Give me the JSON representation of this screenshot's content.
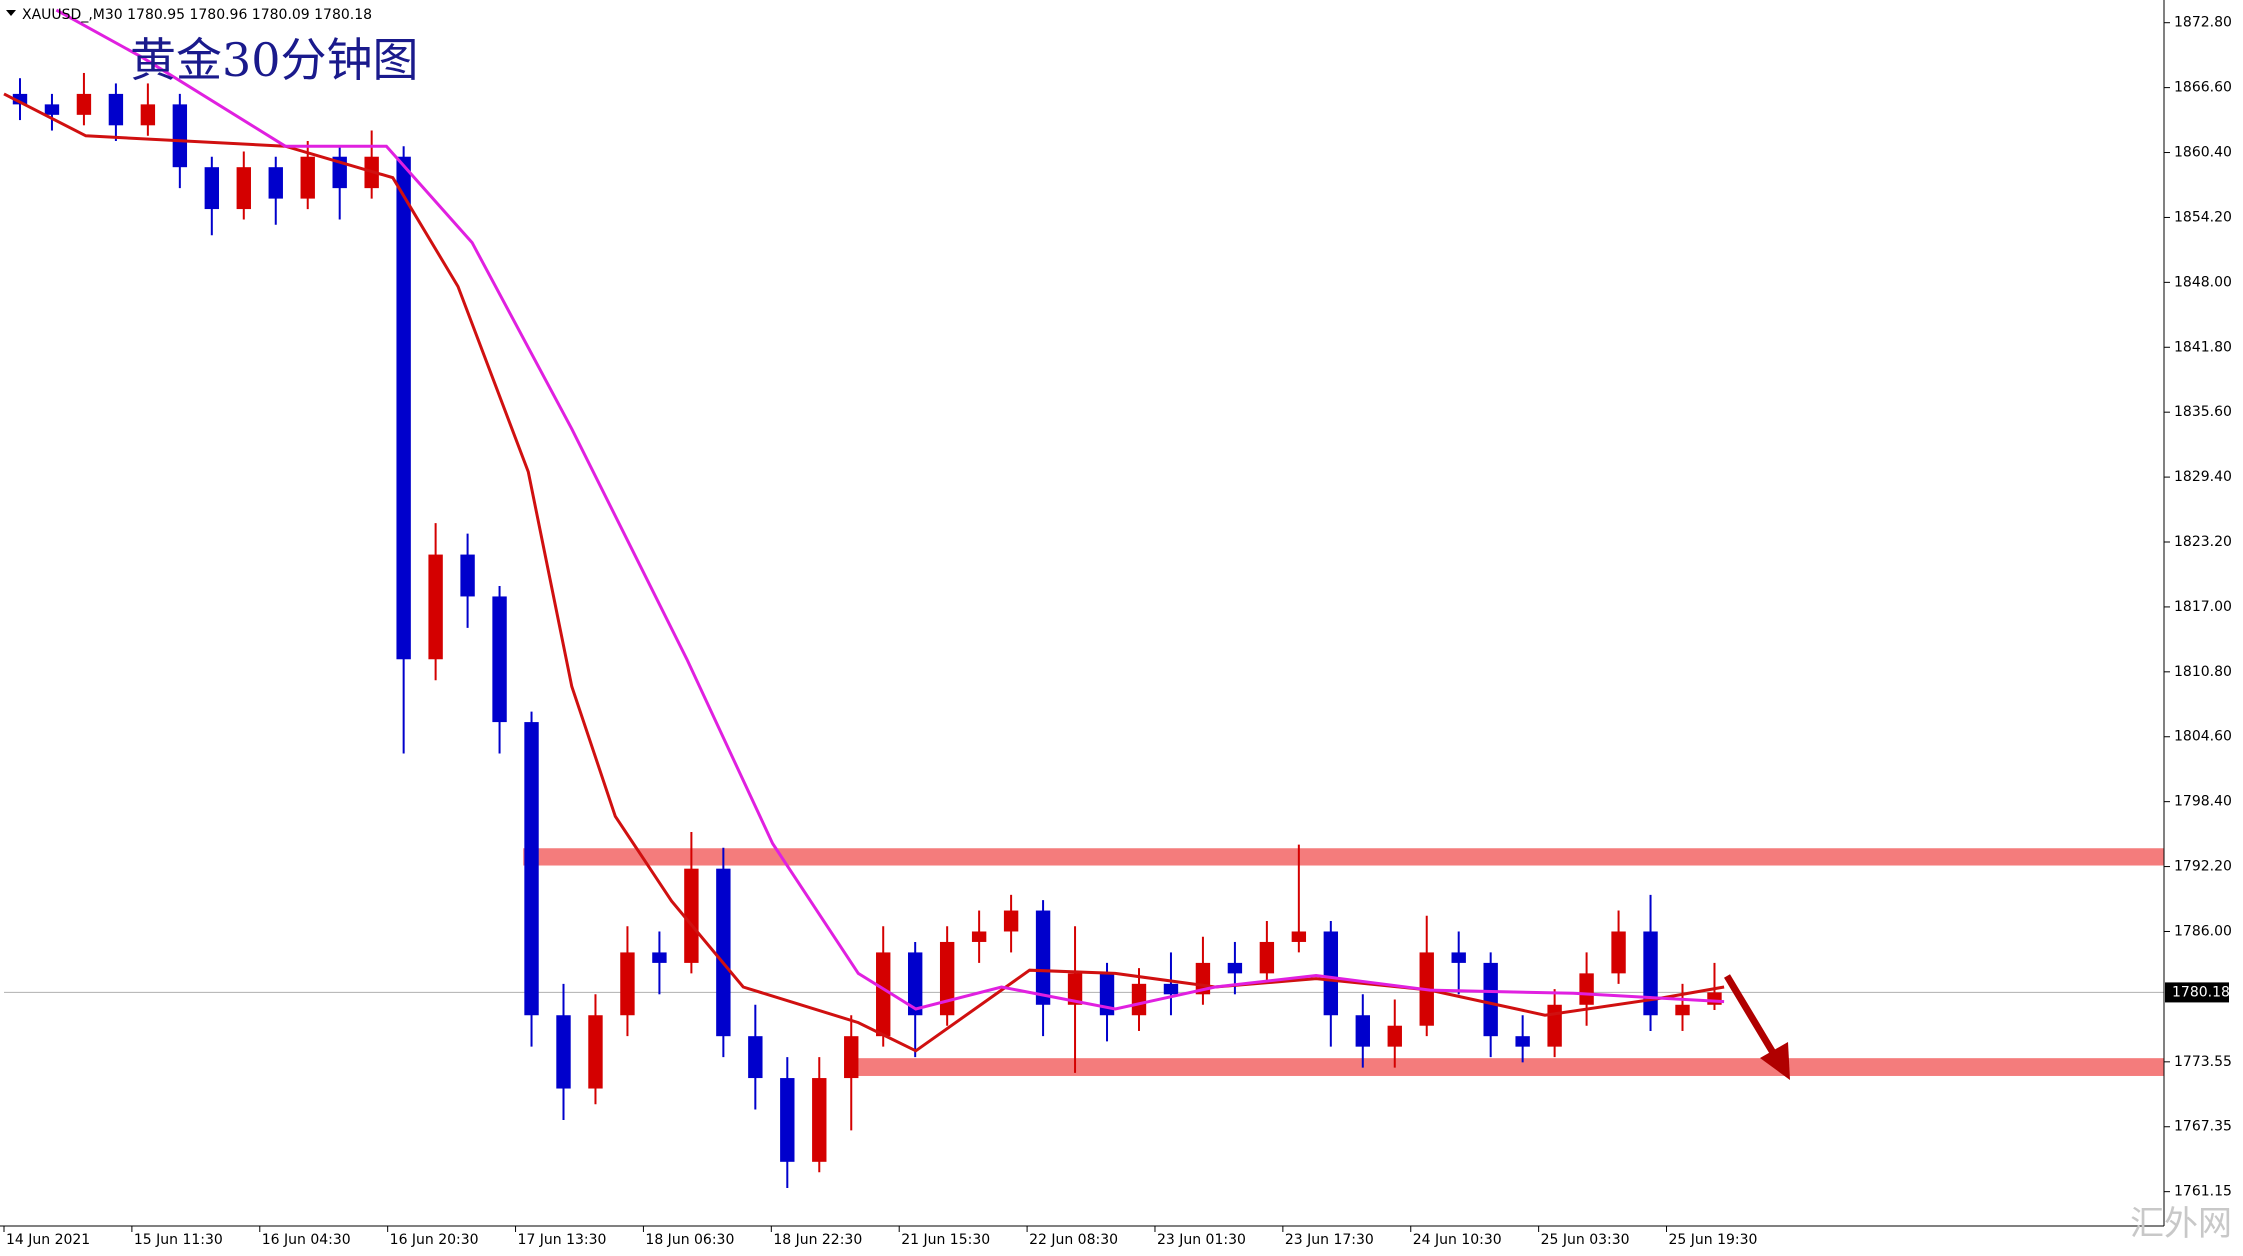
{
  "chart_data": {
    "type": "candlestick",
    "header": "XAUUSD_,M30  1780.95 1780.96 1780.09 1780.18",
    "title": "黄金30分钟图",
    "watermark": "汇外网",
    "up_color": "#d40000",
    "down_color": "#0000cc",
    "candles": {
      "x": [
        0.125,
        0.375,
        0.625,
        0.875,
        1.125,
        1.375,
        1.625,
        1.875,
        2.125,
        2.375,
        2.625,
        2.875,
        3.125,
        3.375,
        3.625,
        3.875,
        4.125,
        4.375,
        4.625,
        4.875,
        5.125,
        5.375,
        5.625,
        5.875,
        6.125,
        6.375,
        6.625,
        6.875,
        7.125,
        7.375,
        7.625,
        7.875,
        8.125,
        8.375,
        8.625,
        8.875,
        9.125,
        9.375,
        9.625,
        9.875,
        10.125,
        10.375,
        10.625,
        10.875,
        11.125,
        11.375,
        11.625,
        11.875,
        12.125,
        12.375,
        12.625,
        12.875,
        13.125,
        13.375
      ],
      "open": [
        1866,
        1865,
        1864,
        1866,
        1863,
        1865,
        1859,
        1855,
        1859,
        1856,
        1860,
        1857,
        1860,
        1812,
        1822,
        1818,
        1806,
        1778,
        1771,
        1778,
        1784,
        1783,
        1792,
        1776,
        1772,
        1764,
        1772,
        1776,
        1784,
        1778,
        1785,
        1786,
        1788,
        1779,
        1782,
        1778,
        1781,
        1780,
        1783,
        1782,
        1785,
        1786,
        1778,
        1775,
        1777,
        1784,
        1783,
        1776,
        1775,
        1779,
        1782,
        1786,
        1778,
        1779
      ],
      "high": [
        1867.5,
        1866,
        1868,
        1867,
        1867,
        1866,
        1860,
        1860.5,
        1860,
        1861.5,
        1861,
        1862.5,
        1861,
        1825,
        1824,
        1819,
        1807,
        1781,
        1780,
        1786.5,
        1786,
        1795.5,
        1794,
        1779,
        1774,
        1774,
        1778,
        1786.5,
        1785,
        1786.5,
        1788,
        1789.5,
        1789,
        1786.5,
        1783,
        1782.5,
        1784,
        1785.5,
        1785,
        1787,
        1794.3,
        1787,
        1780,
        1779.5,
        1787.5,
        1786,
        1784,
        1778,
        1780.5,
        1784,
        1788,
        1789.5,
        1781,
        1783
      ],
      "low": [
        1863.5,
        1862.5,
        1863,
        1861.5,
        1862,
        1857,
        1852.5,
        1854,
        1853.5,
        1855,
        1854,
        1856,
        1803,
        1810,
        1815,
        1803,
        1775,
        1768,
        1769.5,
        1776,
        1780,
        1782,
        1774,
        1769,
        1761.5,
        1763,
        1767,
        1775,
        1774,
        1777,
        1783,
        1784,
        1776,
        1772.5,
        1775.5,
        1776.5,
        1778,
        1779,
        1780,
        1781,
        1784,
        1775,
        1773,
        1773,
        1776,
        1780,
        1774,
        1773.5,
        1774,
        1777,
        1781,
        1776.5,
        1776.5,
        1778.5
      ],
      "close": [
        1865,
        1864,
        1866,
        1863,
        1865,
        1859,
        1855,
        1859,
        1856,
        1860,
        1857,
        1860,
        1812,
        1822,
        1818,
        1806,
        1778,
        1771,
        1778,
        1784,
        1783,
        1792,
        1776,
        1772,
        1764,
        1772,
        1776,
        1784,
        1778,
        1785,
        1786,
        1788,
        1779,
        1782,
        1778,
        1781,
        1780,
        1783,
        1782,
        1785,
        1786,
        1778,
        1775,
        1777,
        1784,
        1783,
        1776,
        1775,
        1779,
        1782,
        1786,
        1778,
        1779,
        1780.18
      ]
    },
    "lines": [
      {
        "color": "#d01010",
        "x": [
          0,
          0.64,
          2.2,
          3.04,
          3.55,
          4.1,
          4.44,
          4.78,
          5.22,
          5.78,
          6.68,
          7.13,
          8.02,
          8.69,
          9.47,
          10.26,
          11.15,
          12.05,
          12.94,
          13.45
        ],
        "values": [
          1866,
          1862,
          1861,
          1858,
          1847.6,
          1829.9,
          1809.4,
          1797,
          1788.9,
          1780.7,
          1777.3,
          1774.6,
          1782.3,
          1782,
          1780.7,
          1781.5,
          1780.4,
          1778,
          1779.6,
          1780.7
        ]
      },
      {
        "color": "#e020e0",
        "x": [
          0.41,
          1.08,
          2.2,
          2.99,
          3.66,
          4.44,
          5.34,
          6.01,
          6.68,
          7.13,
          7.8,
          8.69,
          9.47,
          10.26,
          11.15,
          12.27,
          13.45
        ],
        "values": [
          1874,
          1869.5,
          1861,
          1861,
          1851.8,
          1834,
          1812,
          1794.4,
          1782,
          1778.6,
          1780.7,
          1778.6,
          1780.7,
          1781.8,
          1780.4,
          1780.1,
          1779.3
        ]
      }
    ],
    "zones": [
      {
        "low": 1792.3,
        "high": 1793.95,
        "x_start": 4.06,
        "color": "#f47c7c"
      },
      {
        "low": 1772.2,
        "high": 1773.9,
        "x_start": 6.57,
        "color": "#f47c7c"
      }
    ],
    "current_price": {
      "value": 1780.18,
      "label": "1780.18"
    },
    "xlim": [
      0,
      16.89
    ],
    "ylim": [
      1757.87,
      1874.3
    ],
    "yticks": [
      {
        "value": 1872.8,
        "label": "1872.80"
      },
      {
        "value": 1866.6,
        "label": "1866.60"
      },
      {
        "value": 1860.4,
        "label": "1860.40"
      },
      {
        "value": 1854.2,
        "label": "1854.20"
      },
      {
        "value": 1848,
        "label": "1848.00"
      },
      {
        "value": 1841.8,
        "label": "1841.80"
      },
      {
        "value": 1835.6,
        "label": "1835.60"
      },
      {
        "value": 1829.4,
        "label": "1829.40"
      },
      {
        "value": 1823.2,
        "label": "1823.20"
      },
      {
        "value": 1817,
        "label": "1817.00"
      },
      {
        "value": 1810.8,
        "label": "1810.80"
      },
      {
        "value": 1804.6,
        "label": "1804.60"
      },
      {
        "value": 1798.4,
        "label": "1798.40"
      },
      {
        "value": 1792.2,
        "label": "1792.20"
      },
      {
        "value": 1786,
        "label": "1786.00"
      },
      {
        "value": 1773.55,
        "label": "1773.55"
      },
      {
        "value": 1767.35,
        "label": "1767.35"
      },
      {
        "value": 1761.15,
        "label": "1761.15"
      }
    ],
    "xticks": [
      {
        "value": 0,
        "label": "14 Jun 2021"
      },
      {
        "value": 1,
        "label": "15 Jun 11:30"
      },
      {
        "value": 2,
        "label": "16 Jun 04:30"
      },
      {
        "value": 3,
        "label": "16 Jun 20:30"
      },
      {
        "value": 4,
        "label": "17 Jun 13:30"
      },
      {
        "value": 5,
        "label": "18 Jun 06:30"
      },
      {
        "value": 6,
        "label": "18 Jun 22:30"
      },
      {
        "value": 7,
        "label": "21 Jun 15:30"
      },
      {
        "value": 8,
        "label": "22 Jun 08:30"
      },
      {
        "value": 9,
        "label": "23 Jun 01:30"
      },
      {
        "value": 10,
        "label": "23 Jun 17:30"
      },
      {
        "value": 11,
        "label": "24 Jun 10:30"
      },
      {
        "value": 12,
        "label": "25 Jun 03:30"
      },
      {
        "value": 13,
        "label": "25 Jun 19:30"
      }
    ]
  }
}
